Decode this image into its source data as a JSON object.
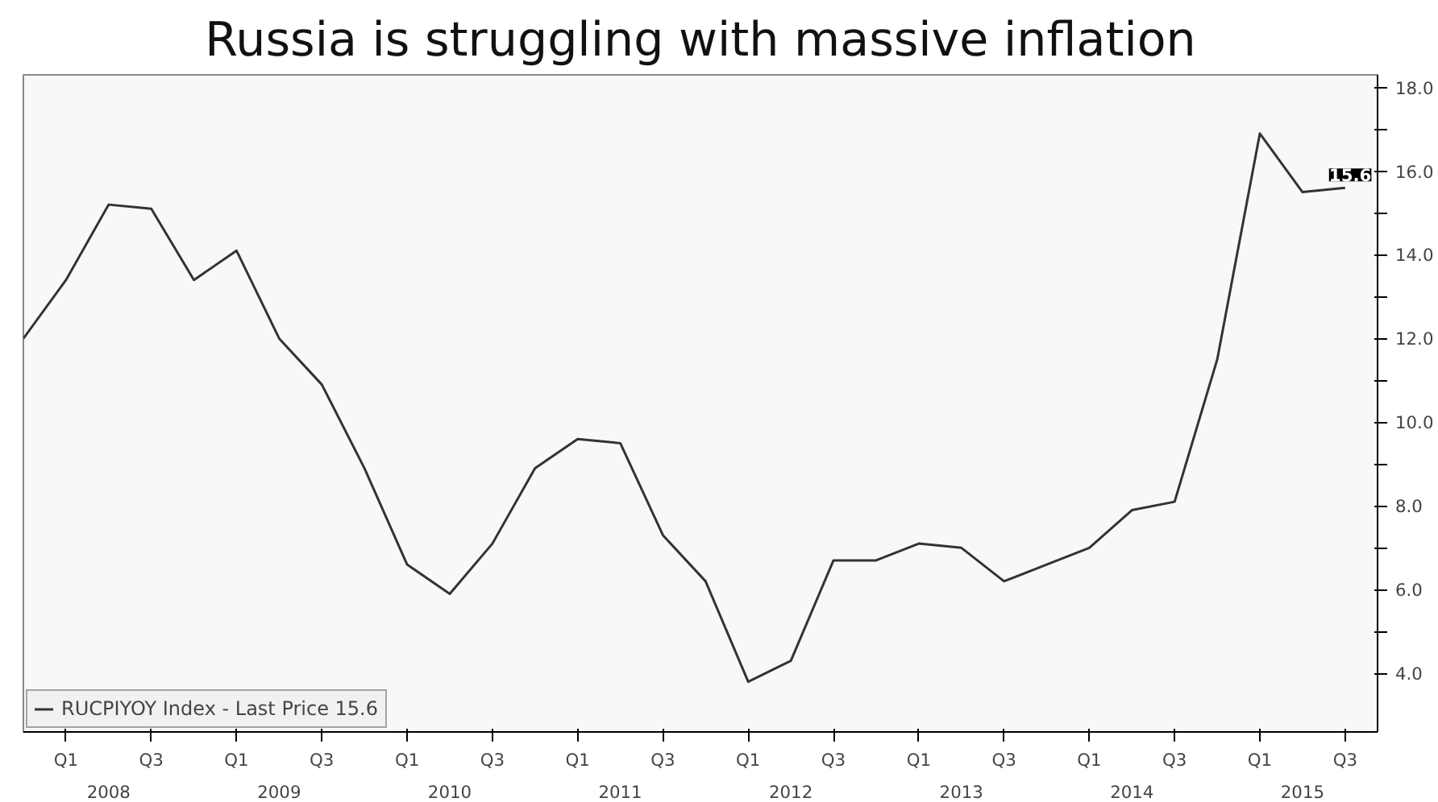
{
  "chart_data": {
    "type": "line",
    "title": "Russia is struggling with massive inflation",
    "categories": [
      null,
      "Q1",
      null,
      "Q3",
      null,
      "Q1",
      null,
      "Q3",
      null,
      "Q1",
      null,
      "Q3",
      null,
      "Q1",
      null,
      "Q3",
      null,
      "Q1",
      null,
      "Q3",
      null,
      "Q1",
      null,
      "Q3",
      null,
      "Q1",
      null,
      "Q3",
      null,
      "Q1",
      null,
      "Q3"
    ],
    "series": [
      {
        "name": "RUCPIYOY Index - Last Price 15.6",
        "color": "#333333",
        "values": [
          12.0,
          13.4,
          15.2,
          15.1,
          13.4,
          14.1,
          12.0,
          10.9,
          8.9,
          6.6,
          5.9,
          7.1,
          8.9,
          9.6,
          9.5,
          7.3,
          6.2,
          3.8,
          4.3,
          6.7,
          6.7,
          7.1,
          7.0,
          6.2,
          6.6,
          7.0,
          7.9,
          8.1,
          11.5,
          16.9,
          15.5,
          15.6
        ]
      }
    ],
    "x2lim": [
      2008,
      2015.94
    ],
    "x2ticks": [
      {
        "value": 2008.5,
        "label": "2008"
      },
      {
        "value": 2009.5,
        "label": "2009"
      },
      {
        "value": 2010.5,
        "label": "2010"
      },
      {
        "value": 2011.5,
        "label": "2011"
      },
      {
        "value": 2012.5,
        "label": "2012"
      },
      {
        "value": 2013.5,
        "label": "2013"
      },
      {
        "value": 2014.5,
        "label": "2014"
      },
      {
        "value": 2015.5,
        "label": "2015"
      }
    ],
    "ylim": [
      2.6,
      18.3
    ],
    "yticks": [
      {
        "value": 4,
        "label": "4.0"
      },
      {
        "value": 5,
        "label": null
      },
      {
        "value": 6,
        "label": "6.0"
      },
      {
        "value": 7,
        "label": null
      },
      {
        "value": 8,
        "label": "8.0"
      },
      {
        "value": 9,
        "label": null
      },
      {
        "value": 10,
        "label": "10.0"
      },
      {
        "value": 11,
        "label": null
      },
      {
        "value": 12,
        "label": "12.0"
      },
      {
        "value": 13,
        "label": null
      },
      {
        "value": 14,
        "label": "14.0"
      },
      {
        "value": 15,
        "label": null
      },
      {
        "value": 16,
        "label": "16.0"
      },
      {
        "value": 17,
        "label": null
      },
      {
        "value": 18,
        "label": "18.0"
      }
    ],
    "annotations": [
      {
        "text": "15.6",
        "y": 15.6
      }
    ],
    "legend": "bottom left",
    "grid": false,
    "marker": "none",
    "line_style": "solid"
  }
}
